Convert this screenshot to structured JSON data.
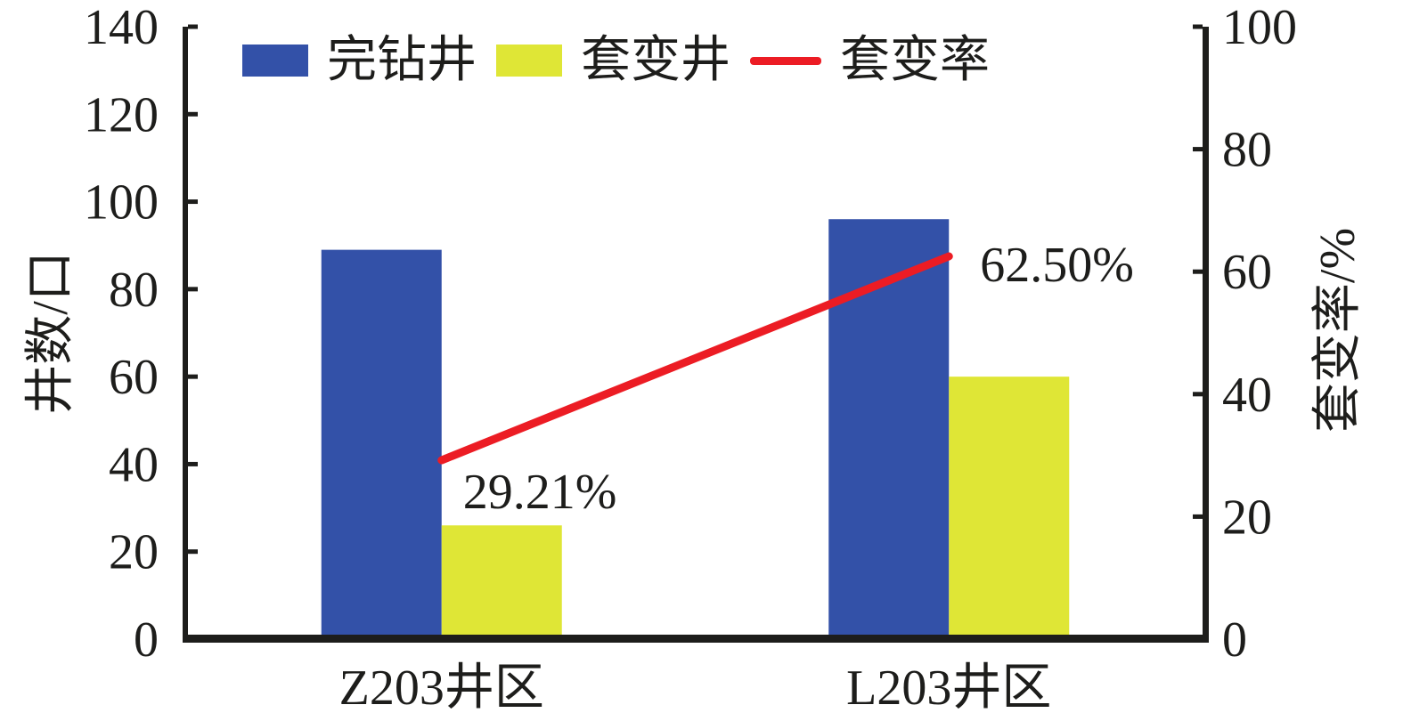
{
  "chart_data": {
    "type": "bar",
    "subtype": "grouped-bars-with-line-overlay",
    "categories": [
      "Z203井区",
      "L203井区"
    ],
    "series": [
      {
        "name": "完钻井",
        "type": "bar",
        "axis": "left",
        "color": "#3351a8",
        "values": [
          89,
          96
        ]
      },
      {
        "name": "套变井",
        "type": "bar",
        "axis": "left",
        "color": "#dfe636",
        "values": [
          26,
          60
        ]
      },
      {
        "name": "套变率",
        "type": "line",
        "axis": "right",
        "color": "#ec1c24",
        "values": [
          29.21,
          62.5
        ],
        "point_labels": [
          "29.21%",
          "62.50%"
        ]
      }
    ],
    "left_axis": {
      "label": "井数/口",
      "min": 0,
      "max": 140,
      "ticks": [
        0,
        20,
        40,
        60,
        80,
        100,
        120,
        140
      ]
    },
    "right_axis": {
      "label": "套变率/%",
      "min": 0,
      "max": 100,
      "ticks": [
        0,
        20,
        40,
        60,
        80,
        100
      ]
    },
    "legend_position": "top",
    "grid": false,
    "background": "#ffffff",
    "axis_color": "#1d1d1b",
    "text_color": "#1d1d1b"
  }
}
